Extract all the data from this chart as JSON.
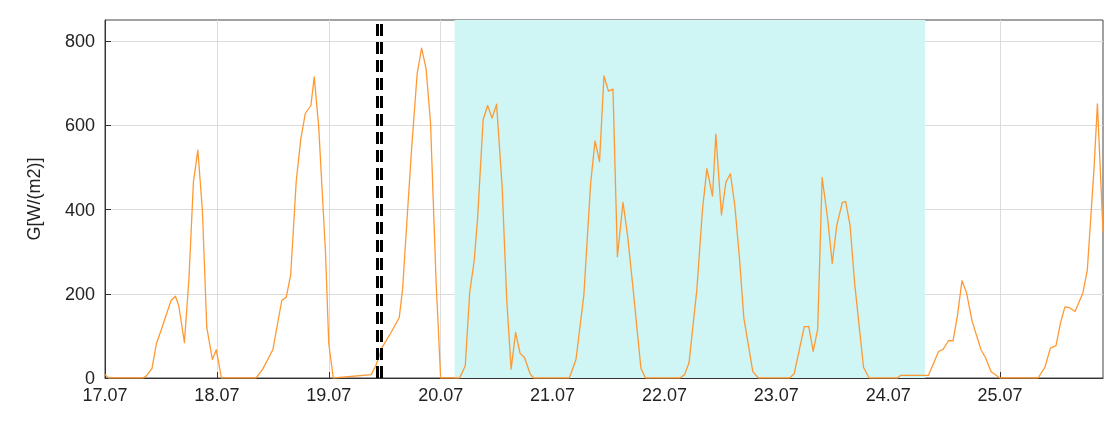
{
  "chart_data": {
    "type": "line",
    "ylabel": "G[W/(m2)]",
    "xlim": [
      "--07-17",
      "--07-25T22:05"
    ],
    "ylim": [
      0,
      850
    ],
    "xticks": [
      {
        "value": "--07-17",
        "label": "17.07"
      },
      {
        "value": "--07-18",
        "label": "18.07"
      },
      {
        "value": "--07-19",
        "label": "19.07"
      },
      {
        "value": "--07-20",
        "label": "20.07"
      },
      {
        "value": "--07-21",
        "label": "21.07"
      },
      {
        "value": "--07-22",
        "label": "22.07"
      },
      {
        "value": "--07-23",
        "label": "23.07"
      },
      {
        "value": "--07-24",
        "label": "24.07"
      },
      {
        "value": "--07-25",
        "label": "25.07"
      }
    ],
    "yticks": [
      0,
      200,
      400,
      600,
      800
    ],
    "grid": true,
    "marker": "none",
    "line_style": "solid",
    "series": [
      {
        "color": "#ff9933",
        "x": [
          "--07-17T00:00",
          "--07-17T00:50",
          "--07-17T08:10",
          "--07-17T08:53",
          "--07-17T10:05",
          "--07-17T11:02",
          "--07-17T12:00",
          "--07-17T14:10",
          "--07-17T15:07",
          "--07-17T15:50",
          "--07-17T17:02",
          "--07-17T18:00",
          "--07-17T18:58",
          "--07-17T19:55",
          "--07-17T20:53",
          "--07-17T21:50",
          "--07-17T23:02",
          "--07-17T23:53",
          "--07-18T00:58",
          "--07-18T08:24",
          "--07-18T09:50",
          "--07-18T12:00",
          "--07-18T13:55",
          "--07-18T14:53",
          "--07-18T15:50",
          "--07-18T17:02",
          "--07-18T18:00",
          "--07-18T18:58",
          "--07-18T20:10",
          "--07-18T20:53",
          "--07-18T21:50",
          "--07-18T23:17",
          "--07-19T00:00",
          "--07-19T00:58",
          "--07-19T09:07",
          "--07-19T10:05",
          "--07-19T11:31",
          "--07-19T13:12",
          "--07-19T15:07",
          "--07-19T15:50",
          "--07-19T16:48",
          "--07-19T17:46",
          "--07-19T18:58",
          "--07-19T19:55",
          "--07-19T20:53",
          "--07-19T21:50",
          "--07-19T23:02",
          "--07-20T00:00",
          "--07-20T00:14",
          "--07-20T04:05",
          "--07-20T05:17",
          "--07-20T06:14",
          "--07-20T07:12",
          "--07-20T07:55",
          "--07-20T09:07",
          "--07-20T10:05",
          "--07-20T11:02",
          "--07-20T12:00",
          "--07-20T13:12",
          "--07-20T14:10",
          "--07-20T15:07",
          "--07-20T16:05",
          "--07-20T17:02",
          "--07-20T18:00",
          "--07-20T19:12",
          "--07-20T19:55",
          "--07-21T03:36",
          "--07-21T05:02",
          "--07-21T06:43",
          "--07-21T08:10",
          "--07-21T09:07",
          "--07-21T10:05",
          "--07-21T11:02",
          "--07-21T12:00",
          "--07-21T12:58",
          "--07-21T13:55",
          "--07-21T15:07",
          "--07-21T16:05",
          "--07-21T17:17",
          "--07-21T18:58",
          "--07-21T19:55",
          "--07-22T03:22",
          "--07-22T04:19",
          "--07-22T05:17",
          "--07-22T06:58",
          "--07-22T08:10",
          "--07-22T09:07",
          "--07-22T10:19",
          "--07-22T11:02",
          "--07-22T12:14",
          "--07-22T13:12",
          "--07-22T14:10",
          "--07-22T15:07",
          "--07-22T16:05",
          "--07-22T17:02",
          "--07-22T18:58",
          "--07-22T20:10",
          "--07-23T02:53",
          "--07-23T03:50",
          "--07-23T06:00",
          "--07-23T06:58",
          "--07-23T07:55",
          "--07-23T08:53",
          "--07-23T09:50",
          "--07-23T11:02",
          "--07-23T12:00",
          "--07-23T12:58",
          "--07-23T14:10",
          "--07-23T14:53",
          "--07-23T15:50",
          "--07-23T16:48",
          "--07-23T18:43",
          "--07-23T19:55",
          "--07-24T02:02",
          "--07-24T02:38",
          "--07-24T08:38",
          "--07-24T10:48",
          "--07-24T11:46",
          "--07-24T12:58",
          "--07-24T13:55",
          "--07-24T14:53",
          "--07-24T15:50",
          "--07-24T16:48",
          "--07-24T18:00",
          "--07-24T19:55",
          "--07-24T20:53",
          "--07-24T22:05",
          "--07-25T00:00",
          "--07-25T08:10",
          "--07-25T09:36",
          "--07-25T10:48",
          "--07-25T12:00",
          "--07-25T12:58",
          "--07-25T13:55",
          "--07-25T14:53",
          "--07-25T16:05",
          "--07-25T17:46",
          "--07-25T18:43",
          "--07-25T20:10",
          "--07-25T20:53",
          "--07-25T22:05"
        ],
        "values": [
          8,
          0,
          0,
          5,
          23,
          82,
          112,
          184,
          194,
          171,
          84,
          234,
          465,
          541,
          400,
          120,
          44,
          67,
          0,
          0,
          21,
          67,
          184,
          192,
          245,
          469,
          567,
          628,
          647,
          715,
          598,
          302,
          82,
          0,
          8,
          29,
          74,
          105,
          143,
          211,
          378,
          544,
          723,
          783,
          734,
          605,
          226,
          0,
          0,
          0,
          29,
          203,
          279,
          378,
          613,
          647,
          617,
          650,
          453,
          188,
          21,
          108,
          59,
          48,
          10,
          0,
          0,
          44,
          196,
          461,
          563,
          514,
          717,
          681,
          686,
          288,
          417,
          340,
          211,
          23,
          0,
          0,
          8,
          36,
          211,
          400,
          497,
          432,
          579,
          387,
          465,
          485,
          408,
          287,
          143,
          15,
          0,
          0,
          10,
          122,
          122,
          63,
          116,
          476,
          377,
          272,
          362,
          417,
          419,
          362,
          226,
          25,
          0,
          0,
          6,
          6,
          63,
          68,
          89,
          88,
          150,
          231,
          203,
          135,
          67,
          48,
          15,
          0,
          0,
          25,
          71,
          77,
          131,
          169,
          167,
          158,
          202,
          256,
          499,
          651,
          347
        ]
      }
    ],
    "ref_lines": [
      {
        "axis": "x",
        "value": "--07-19T10:19",
        "color": "#000000",
        "line_style": "dashed"
      },
      {
        "axis": "x",
        "value": "--07-19T11:17",
        "color": "#000000",
        "line_style": "dashed"
      }
    ],
    "bands": [
      {
        "axis": "x",
        "from": "--07-20T03:00",
        "to": "--07-24T07:55",
        "color": "#cff5f5"
      }
    ]
  }
}
